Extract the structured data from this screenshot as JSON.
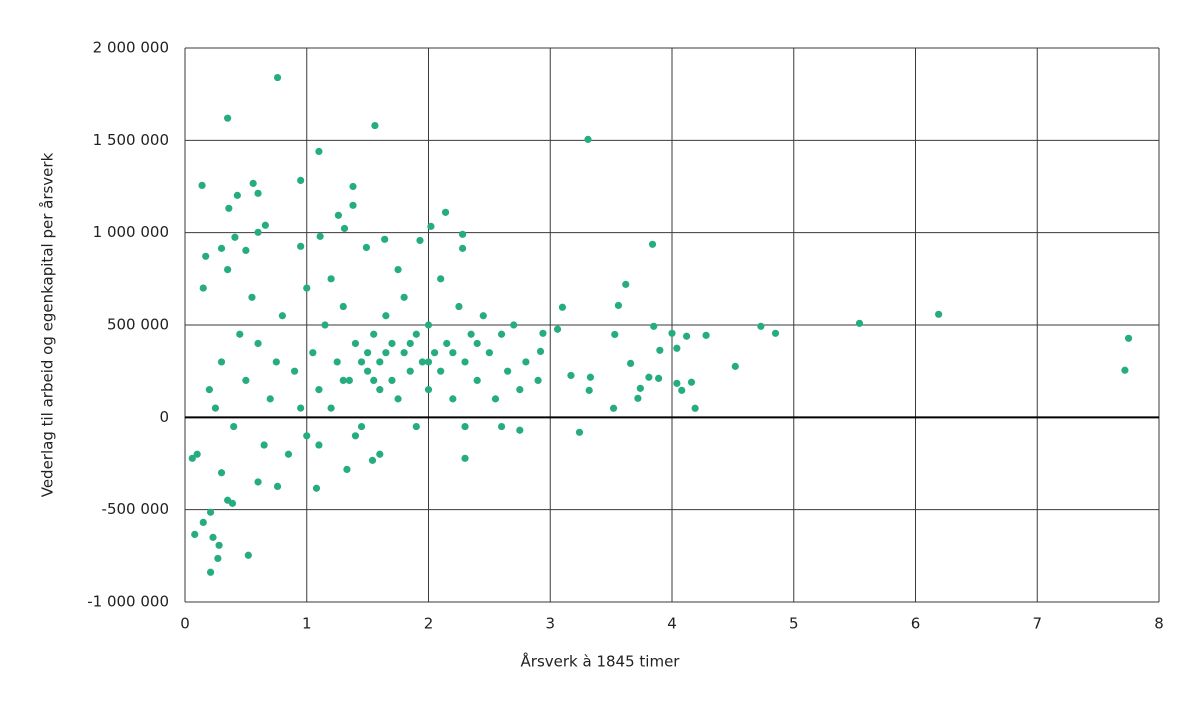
{
  "chart_data": {
    "type": "scatter",
    "y_label": "Vederlag til arbeid og egenkapital per årsverk",
    "x_label": "Årsverk à 1845 timer",
    "color": "#26ad7e",
    "grid": true,
    "xlim": [
      0,
      8
    ],
    "xticks": [
      0,
      1,
      2,
      3,
      4,
      5,
      6,
      7,
      8
    ],
    "ylim": [
      -1000000,
      2000000
    ],
    "yticks": [
      {
        "value": -1000000,
        "label": "-1 000 000"
      },
      {
        "value": -500000,
        "label": "-500 000"
      },
      0,
      {
        "value": 500000,
        "label": "500 000"
      },
      {
        "value": 1000000,
        "label": "1 000 000"
      },
      {
        "value": 1500000,
        "label": "1 500 000"
      },
      {
        "value": 2000000,
        "label": "2 000 000"
      }
    ],
    "x": [
      0.76,
      0.35,
      1.56,
      3.31,
      1.1,
      0.14,
      0.95,
      1.38,
      0.56,
      0.43,
      0.6,
      0.36,
      1.38,
      2.14,
      1.26,
      0.66,
      2.02,
      1.31,
      0.6,
      1.11,
      0.41,
      2.28,
      1.64,
      1.93,
      3.84,
      0.95,
      0.3,
      0.5,
      1.49,
      2.28,
      0.17,
      3.62,
      3.56,
      3.1,
      3.85,
      4.73,
      4.85,
      5.54,
      6.19,
      7.75,
      7.72,
      4.52,
      4.28,
      4.0,
      4.12,
      4.04,
      4.16,
      4.19,
      4.08,
      4.04,
      3.81,
      3.89,
      3.9,
      3.74,
      3.66,
      3.72,
      3.53,
      3.52,
      3.33,
      3.32,
      3.17,
      3.24,
      3.06,
      2.94,
      2.92,
      0.08,
      0.15,
      0.21,
      0.23,
      0.28,
      0.27,
      0.52,
      0.21,
      0.35,
      0.39,
      0.06,
      1.08,
      0.76,
      1.33,
      2.3,
      1.54,
      2.75,
      0.2,
      0.3,
      0.25,
      0.4,
      0.5,
      0.6,
      0.7,
      0.8,
      0.9,
      1.0,
      1.0,
      1.05,
      1.1,
      1.15,
      1.2,
      1.25,
      1.3,
      1.35,
      1.4,
      1.45,
      1.5,
      1.5,
      1.55,
      1.6,
      1.6,
      1.65,
      1.7,
      1.7,
      1.75,
      1.8,
      1.8,
      1.85,
      1.9,
      1.95,
      2.0,
      2.0,
      2.05,
      2.1,
      2.15,
      2.2,
      2.25,
      2.3,
      2.35,
      2.4,
      2.45,
      2.5,
      2.55,
      2.6,
      2.65,
      2.7,
      2.8,
      2.9,
      0.15,
      0.35,
      0.55,
      0.65,
      0.85,
      0.95,
      1.2,
      1.4,
      1.6,
      1.75,
      2.1,
      2.3,
      0.45,
      0.75,
      1.3,
      1.45,
      1.55,
      1.65,
      1.85,
      2.0,
      2.2,
      2.4,
      0.1,
      0.3,
      0.6,
      1.1,
      1.9,
      2.6,
      2.75
    ],
    "values": [
      1840000,
      1620000,
      1580000,
      1505000,
      1440000,
      1256000,
      1283000,
      1250000,
      1267000,
      1202000,
      1213000,
      1132000,
      1148000,
      1110000,
      1094000,
      1040000,
      1034000,
      1023000,
      1002000,
      980000,
      975000,
      991000,
      964000,
      958000,
      937000,
      926000,
      915000,
      904000,
      920000,
      915000,
      872000,
      720000,
      606000,
      596000,
      493000,
      493000,
      455000,
      509000,
      558000,
      428000,
      255000,
      276000,
      444000,
      455000,
      439000,
      374000,
      190000,
      49000,
      146000,
      184000,
      217000,
      211000,
      363000,
      157000,
      292000,
      103000,
      449000,
      49000,
      217000,
      146000,
      227000,
      -81000,
      477000,
      455000,
      357000,
      -634000,
      -569000,
      -514000,
      -650000,
      -693000,
      -764000,
      -747000,
      -839000,
      -449000,
      -466000,
      -222000,
      -384000,
      -374000,
      -282000,
      -222000,
      -233000,
      -70000,
      150000,
      300000,
      50000,
      -50000,
      200000,
      400000,
      100000,
      550000,
      250000,
      -100000,
      700000,
      350000,
      150000,
      500000,
      50000,
      300000,
      600000,
      200000,
      400000,
      -50000,
      350000,
      250000,
      450000,
      150000,
      300000,
      550000,
      400000,
      200000,
      100000,
      350000,
      650000,
      250000,
      450000,
      300000,
      150000,
      500000,
      350000,
      250000,
      400000,
      100000,
      600000,
      300000,
      450000,
      200000,
      550000,
      350000,
      100000,
      450000,
      250000,
      500000,
      300000,
      200000,
      700000,
      800000,
      650000,
      -150000,
      -200000,
      50000,
      750000,
      -100000,
      -200000,
      800000,
      750000,
      -50000,
      450000,
      300000,
      200000,
      300000,
      200000,
      350000,
      400000,
      300000,
      350000,
      400000,
      -200000,
      -300000,
      -350000,
      -150000,
      -50000,
      -50000,
      150000
    ]
  }
}
